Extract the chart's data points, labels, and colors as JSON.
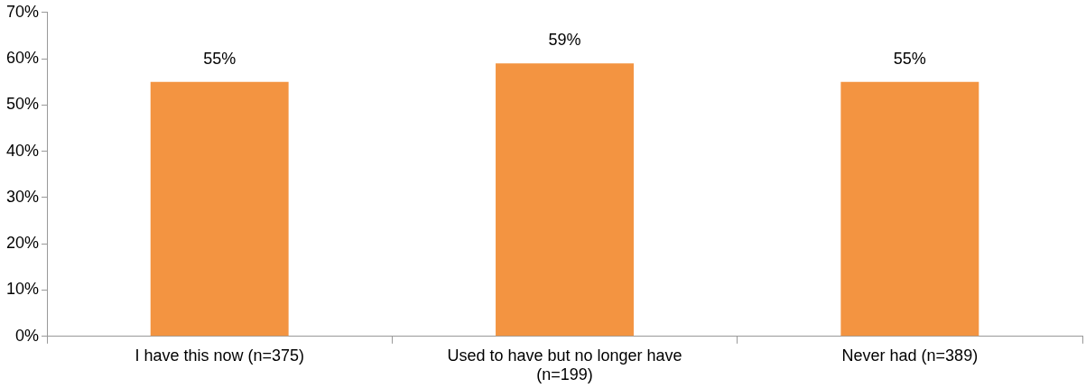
{
  "chart_data": {
    "type": "bar",
    "categories": [
      "I have this now (n=375)",
      "Used to have but no longer have (n=199)",
      "Never had (n=389)"
    ],
    "values": [
      55,
      59,
      55
    ],
    "color": "#f39441",
    "ylim": [
      0,
      70
    ],
    "yticks": [
      {
        "value": 0,
        "label": "0%"
      },
      {
        "value": 10,
        "label": "10%"
      },
      {
        "value": 20,
        "label": "20%"
      },
      {
        "value": 30,
        "label": "30%"
      },
      {
        "value": 40,
        "label": "40%"
      },
      {
        "value": 50,
        "label": "50%"
      },
      {
        "value": 60,
        "label": "60%"
      },
      {
        "value": 70,
        "label": "70%"
      }
    ],
    "value_labels": [
      "55%",
      "59%",
      "55%"
    ],
    "grid": false,
    "legend": false
  }
}
